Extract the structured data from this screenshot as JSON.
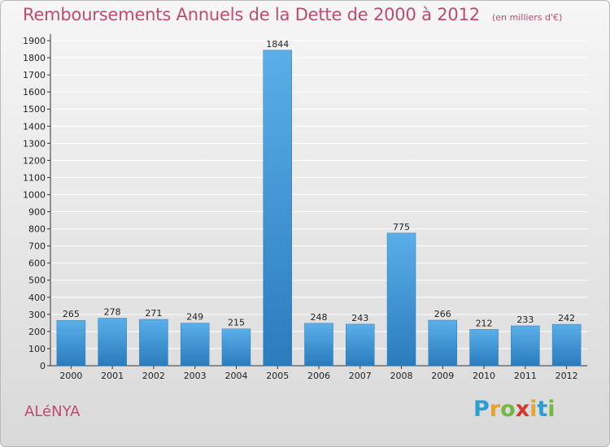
{
  "header": {
    "title": "Remboursements Annuels de la Dette de 2000 à 2012",
    "unit": "(en milliers d'€)"
  },
  "footer": {
    "commune": "ALéNYA",
    "brand_letters": [
      "P",
      "r",
      "o",
      "x",
      "i",
      "t",
      "i"
    ],
    "brand_colors": [
      "#2a9fd6",
      "#e7a32d",
      "#74b843",
      "#d6372b",
      "#e7a32d",
      "#2a9fd6",
      "#74b843"
    ]
  },
  "colors": {
    "bar": "#4a9fdf",
    "bar_dark": "#2f7fbf",
    "title": "#c24a6e",
    "grid": "#ffffff"
  },
  "chart_data": {
    "type": "bar",
    "categories": [
      "2000",
      "2001",
      "2002",
      "2003",
      "2004",
      "2005",
      "2006",
      "2007",
      "2008",
      "2009",
      "2010",
      "2011",
      "2012"
    ],
    "values": [
      265,
      278,
      271,
      249,
      215,
      1844,
      248,
      243,
      775,
      266,
      212,
      233,
      242
    ],
    "ylim": [
      0,
      1900
    ],
    "yticks": [
      0,
      100,
      200,
      300,
      400,
      500,
      600,
      700,
      800,
      900,
      1000,
      1100,
      1200,
      1300,
      1400,
      1500,
      1600,
      1700,
      1800,
      1900
    ],
    "grid": true,
    "data_labels": true
  }
}
